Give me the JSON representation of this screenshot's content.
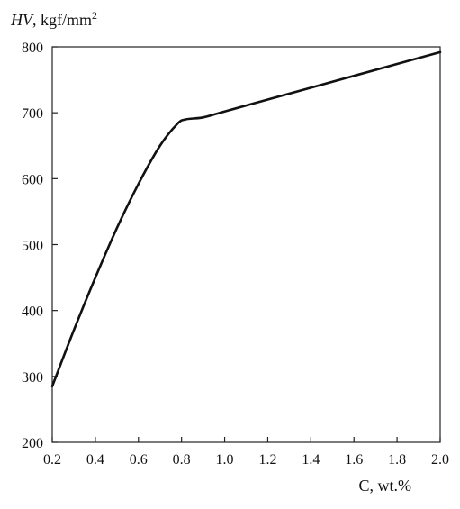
{
  "chart_data": {
    "type": "line",
    "title": "",
    "ylabel": {
      "var": "HV",
      "unit": ", kgf/mm",
      "sup": "2"
    },
    "xlabel": "C, wt.%",
    "xlim": [
      0.2,
      2.0
    ],
    "ylim": [
      200,
      800
    ],
    "xticks": [
      "0.2",
      "0.4",
      "0.6",
      "0.8",
      "1.0",
      "1.2",
      "1.4",
      "1.6",
      "1.8",
      "2.0"
    ],
    "yticks": [
      "200",
      "300",
      "400",
      "500",
      "600",
      "700",
      "800"
    ],
    "grid": false,
    "series": [
      {
        "x": [
          0.2,
          0.3,
          0.4,
          0.5,
          0.6,
          0.7,
          0.78,
          0.82,
          0.9,
          1.0,
          1.2,
          1.4,
          1.6,
          1.8,
          2.0
        ],
        "y": [
          285,
          370,
          450,
          525,
          592,
          650,
          683,
          690,
          693,
          702,
          720,
          738,
          756,
          774,
          792
        ]
      }
    ],
    "colors": {
      "line": "#111111",
      "axis": "#222222"
    }
  }
}
